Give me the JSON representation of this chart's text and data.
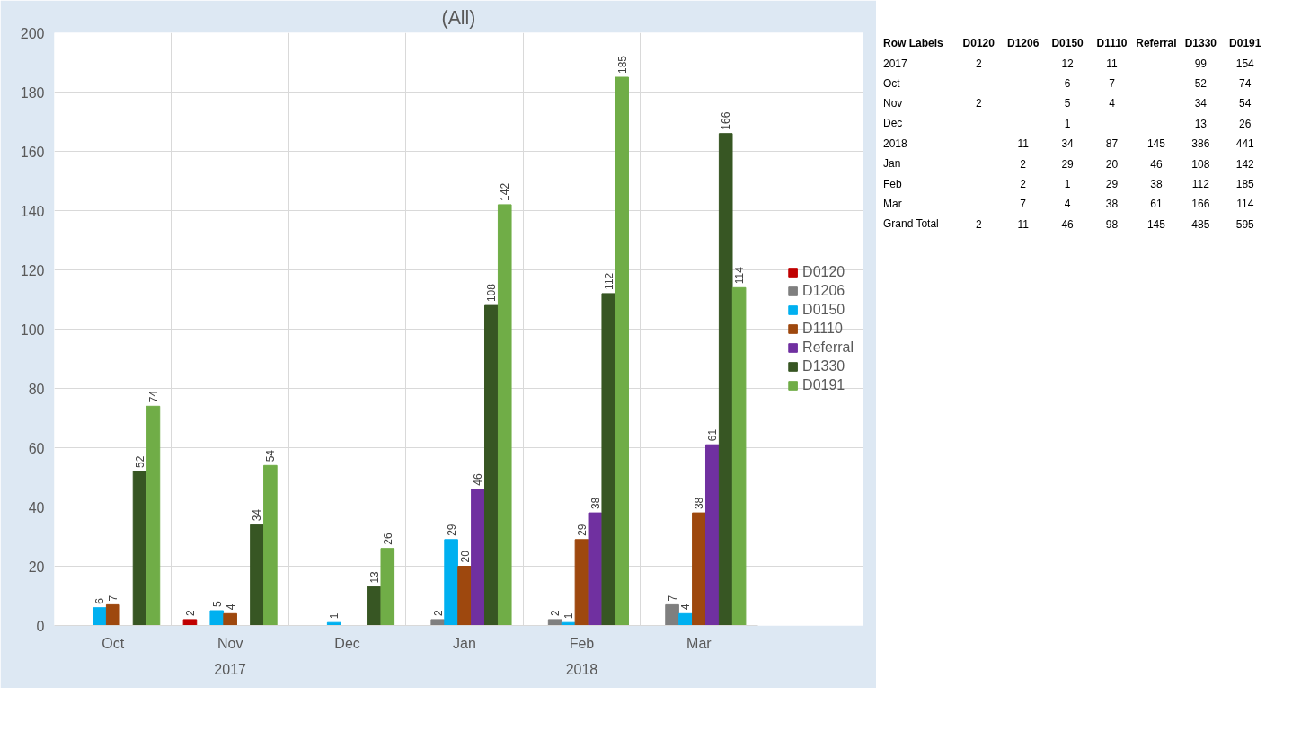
{
  "chart_data": [
    {
      "type": "bar",
      "title": "(All)",
      "categories": [
        "Oct",
        "Nov",
        "Dec",
        "Jan",
        "Feb",
        "Mar"
      ],
      "series": [
        {
          "name": "D0120",
          "color": "#c00000",
          "values": [
            null,
            2,
            null,
            null,
            null,
            null
          ]
        },
        {
          "name": "D1206",
          "color": "#7f7f7f",
          "values": [
            null,
            null,
            null,
            2,
            2,
            7
          ]
        },
        {
          "name": "D0150",
          "color": "#00b0f0",
          "values": [
            6,
            5,
            1,
            29,
            1,
            4
          ]
        },
        {
          "name": "D1110",
          "color": "#9e480e",
          "values": [
            7,
            4,
            null,
            20,
            29,
            38
          ]
        },
        {
          "name": "Referral",
          "color": "#7030a0",
          "values": [
            null,
            null,
            null,
            46,
            38,
            61
          ]
        },
        {
          "name": "D1330",
          "color": "#375623",
          "values": [
            52,
            34,
            13,
            108,
            112,
            166
          ]
        },
        {
          "name": "D0191",
          "color": "#70ad47",
          "values": [
            74,
            54,
            26,
            142,
            185,
            114
          ]
        }
      ],
      "ylim": [
        0,
        200
      ],
      "yticks": [
        0,
        20,
        40,
        60,
        80,
        100,
        120,
        140,
        160,
        180,
        200
      ],
      "grid": true,
      "legend": "right",
      "data_labels": true,
      "annotations": [
        "2017",
        "2018"
      ]
    },
    {
      "type": "heatmap",
      "ylabel": "Row Labels",
      "categories": [
        "D0120",
        "D1206",
        "D0150",
        "D1110",
        "Referral",
        "D1330",
        "D0191"
      ],
      "y_categories": [
        "2017",
        "Oct",
        "Nov",
        "Dec",
        "2018",
        "Jan",
        "Feb",
        "Mar",
        "Grand Total"
      ],
      "cells": [
        [
          2,
          null,
          12,
          11,
          null,
          99,
          154
        ],
        [
          null,
          null,
          6,
          7,
          null,
          52,
          74
        ],
        [
          2,
          null,
          5,
          4,
          null,
          34,
          54
        ],
        [
          null,
          null,
          1,
          null,
          null,
          13,
          26
        ],
        [
          null,
          11,
          34,
          87,
          145,
          386,
          441
        ],
        [
          null,
          2,
          29,
          20,
          46,
          108,
          142
        ],
        [
          null,
          2,
          1,
          29,
          38,
          112,
          185
        ],
        [
          null,
          7,
          4,
          38,
          61,
          166,
          114
        ],
        [
          2,
          11,
          46,
          98,
          145,
          485,
          595
        ]
      ],
      "data_labels": true
    }
  ]
}
